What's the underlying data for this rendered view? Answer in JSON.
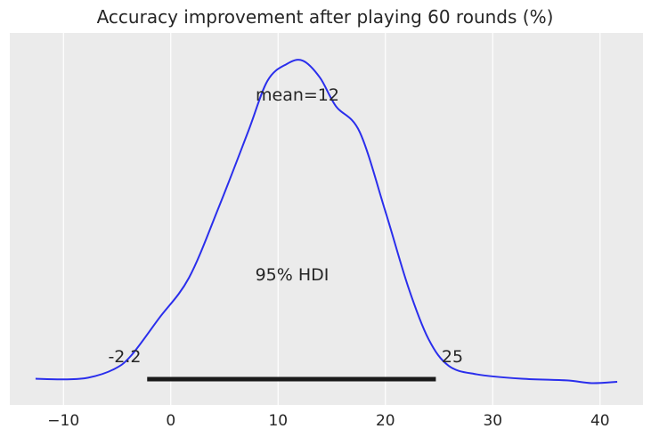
{
  "chart_data": {
    "type": "area",
    "title": "Accuracy improvement after playing 60 rounds (%)",
    "xlabel": "",
    "ylabel": "",
    "xlim": [
      -15,
      44
    ],
    "ylim": [
      0,
      1
    ],
    "x_ticks": [
      -10,
      0,
      10,
      20,
      30,
      40
    ],
    "x_tick_labels": [
      "−10",
      "0",
      "10",
      "20",
      "30",
      "40"
    ],
    "grid": true,
    "series": [
      {
        "color": "#2a2eec",
        "points": [
          [
            -12.6,
            0.017
          ],
          [
            -10.0,
            0.015
          ],
          [
            -7.7,
            0.02
          ],
          [
            -5.3,
            0.045
          ],
          [
            -3.7,
            0.085
          ],
          [
            -1.1,
            0.195
          ],
          [
            1.7,
            0.315
          ],
          [
            4.5,
            0.525
          ],
          [
            7.2,
            0.745
          ],
          [
            9.0,
            0.895
          ],
          [
            10.8,
            0.945
          ],
          [
            12.3,
            0.955
          ],
          [
            13.9,
            0.905
          ],
          [
            15.4,
            0.82
          ],
          [
            17.6,
            0.745
          ],
          [
            20.0,
            0.51
          ],
          [
            22.1,
            0.29
          ],
          [
            24.0,
            0.135
          ],
          [
            25.9,
            0.055
          ],
          [
            28.5,
            0.03
          ],
          [
            32.7,
            0.017
          ],
          [
            36.9,
            0.012
          ],
          [
            39.2,
            0.004
          ],
          [
            41.6,
            0.008
          ]
        ]
      }
    ],
    "annotations": {
      "mean_label": "mean=12",
      "hdi_label": "95% HDI",
      "hdi_low_label": "-2.2",
      "hdi_high_label": "25"
    },
    "hdi": [
      -2.2,
      24.7
    ],
    "hdi_color": "#1a1a1a"
  },
  "colors": {
    "background": "#ebebeb",
    "grid": "#ffffff",
    "line": "#2a2eec"
  }
}
